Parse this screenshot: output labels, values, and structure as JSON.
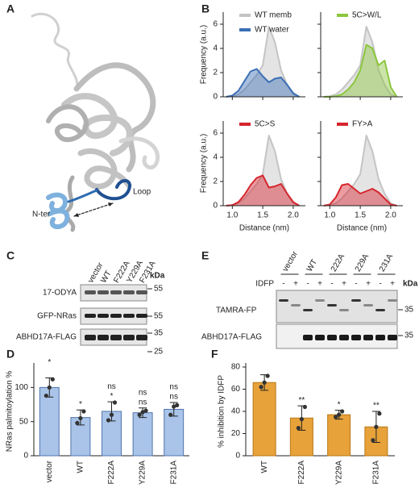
{
  "panels": [
    "A",
    "B",
    "C",
    "D",
    "E",
    "F"
  ],
  "structure": {
    "n_ter": "N-ter",
    "loop": "Loop"
  },
  "blot_c": {
    "lanes": [
      "vector",
      "WT",
      "F222A",
      "Y229A",
      "F231A"
    ],
    "unit": "kDa",
    "rows": [
      "17-ODYA",
      "GFP-NRas",
      "ABHD17A-FLAG"
    ],
    "markers": [
      55,
      55,
      35,
      25
    ]
  },
  "blot_e": {
    "lanes": [
      "vector",
      "WT",
      "222A",
      "229A",
      "231A"
    ],
    "treatment": "IDFP",
    "states": [
      "-",
      "+"
    ],
    "unit": "kDa",
    "rows": [
      "TAMRA-FP",
      "ABHD17A-FLAG"
    ],
    "markers": [
      35,
      35
    ]
  },
  "chart_data": [
    {
      "type": "density",
      "x": [
        0.9,
        1.0,
        1.1,
        1.2,
        1.3,
        1.4,
        1.5,
        1.6,
        1.7,
        1.8,
        1.9,
        2.0,
        2.1
      ],
      "xlim": [
        0.85,
        2.2
      ],
      "xticks": [
        {
          "value": 1,
          "label": "1.0"
        },
        1.5,
        {
          "value": 2,
          "label": "2.0"
        }
      ],
      "ylim": [
        0,
        7
      ],
      "yticks": [
        0,
        2,
        4,
        6
      ],
      "x_tick_labels": false,
      "y_tick_labels": true,
      "ylabel": "Frequency (a.u.)",
      "legend": "upper right",
      "series": [
        {
          "name": "WT memb",
          "color": "#c4c4c4",
          "values": [
            0,
            0.05,
            0.2,
            0.6,
            1.2,
            1.8,
            2.6,
            5.8,
            4.5,
            2.2,
            1.0,
            0.2,
            0
          ]
        },
        {
          "name": "WT water",
          "color": "#3b6fb6",
          "values": [
            0,
            0.1,
            0.5,
            1.3,
            2.1,
            2.3,
            1.7,
            1.2,
            1.5,
            1.6,
            1.0,
            0.3,
            0
          ]
        }
      ]
    },
    {
      "type": "density",
      "x": [
        0.9,
        1.0,
        1.1,
        1.2,
        1.3,
        1.4,
        1.5,
        1.6,
        1.7,
        1.8,
        1.9,
        2.0,
        2.1
      ],
      "xlim": [
        0.85,
        2.2
      ],
      "xticks": [
        {
          "value": 1,
          "label": "1.0"
        },
        1.5,
        {
          "value": 2,
          "label": "2.0"
        }
      ],
      "ylim": [
        0,
        7
      ],
      "yticks": [
        0,
        2,
        4,
        6
      ],
      "x_tick_labels": false,
      "y_tick_labels": false,
      "legend": "upper right",
      "series": [
        {
          "color": "#c4c4c4",
          "values": [
            0,
            0.05,
            0.2,
            0.6,
            1.2,
            1.8,
            2.6,
            5.8,
            4.5,
            2.2,
            1.0,
            0.2,
            0
          ]
        },
        {
          "name": "5C>W/L",
          "color": "#8cc63f",
          "values": [
            0,
            0,
            0.05,
            0.2,
            0.6,
            1.2,
            2.2,
            4.3,
            4.0,
            2.6,
            3.0,
            0.8,
            0
          ]
        }
      ]
    },
    {
      "type": "density",
      "x": [
        0.9,
        1.0,
        1.1,
        1.2,
        1.3,
        1.4,
        1.5,
        1.6,
        1.7,
        1.8,
        1.9,
        2.0,
        2.1
      ],
      "xlim": [
        0.85,
        2.2
      ],
      "xticks": [
        {
          "value": 1,
          "label": "1.0"
        },
        1.5,
        {
          "value": 2,
          "label": "2.0"
        }
      ],
      "ylim": [
        0,
        7
      ],
      "yticks": [
        0,
        2,
        4,
        6
      ],
      "x_tick_labels": true,
      "y_tick_labels": true,
      "ylabel": "Frequency (a.u.)",
      "xlabel": "Distance (nm)",
      "legend": "upper right",
      "series": [
        {
          "color": "#c4c4c4",
          "values": [
            0,
            0.05,
            0.2,
            0.6,
            1.2,
            1.8,
            2.6,
            5.8,
            4.5,
            2.2,
            1.0,
            0.2,
            0
          ]
        },
        {
          "name": "5C>S",
          "color": "#d6262e",
          "values": [
            0,
            0.05,
            0.3,
            0.9,
            1.7,
            2.3,
            2.5,
            1.5,
            1.6,
            1.8,
            1.0,
            0.3,
            0
          ]
        }
      ]
    },
    {
      "type": "density",
      "x": [
        0.9,
        1.0,
        1.1,
        1.2,
        1.3,
        1.4,
        1.5,
        1.6,
        1.7,
        1.8,
        1.9,
        2.0,
        2.1
      ],
      "xlim": [
        0.85,
        2.2
      ],
      "xticks": [
        {
          "value": 1,
          "label": "1.0"
        },
        1.5,
        {
          "value": 2,
          "label": "2.0"
        }
      ],
      "ylim": [
        0,
        7
      ],
      "yticks": [
        0,
        2,
        4,
        6
      ],
      "x_tick_labels": true,
      "y_tick_labels": false,
      "xlabel": "Distance (nm)",
      "legend": "upper right",
      "series": [
        {
          "color": "#c4c4c4",
          "values": [
            0,
            0.05,
            0.2,
            0.6,
            1.2,
            1.8,
            2.6,
            5.8,
            4.5,
            2.2,
            1.0,
            0.2,
            0
          ]
        },
        {
          "name": "FY>A",
          "color": "#d6262e",
          "values": [
            0,
            0.1,
            0.7,
            1.7,
            1.8,
            1.4,
            1.0,
            1.2,
            1.4,
            1.1,
            0.6,
            0.1,
            0
          ]
        }
      ]
    },
    {
      "type": "bar",
      "categories": [
        "vector",
        "WT",
        "F222A",
        "Y229A",
        "F231A"
      ],
      "values": [
        100,
        56,
        65,
        63,
        68
      ],
      "errors": [
        14,
        11,
        14,
        7,
        10
      ],
      "points": [
        [
          88,
          100,
          112
        ],
        [
          48,
          55,
          65
        ],
        [
          52,
          60,
          78
        ],
        [
          60,
          64,
          66
        ],
        [
          60,
          72,
          74
        ]
      ],
      "annotations_top": [
        "*",
        null,
        "ns",
        "ns",
        "ns"
      ],
      "annotation_top_color": "#4a90d9",
      "annotations": [
        null,
        "*",
        "*",
        "ns",
        "ns"
      ],
      "annotation_color": "#222222",
      "color": "#a9c4e8",
      "edge_color": "#4f74ad",
      "ylabel": "NRas palmitoylation %",
      "ylim": [
        0,
        130
      ],
      "yticks": [
        0,
        50,
        100
      ]
    },
    {
      "type": "bar",
      "categories": [
        "WT",
        "F222A",
        "Y229A",
        "F231A"
      ],
      "values": [
        66,
        34,
        37,
        26
      ],
      "errors": [
        7,
        11,
        4,
        14
      ],
      "points": [
        [
          62,
          66,
          72
        ],
        [
          25,
          33,
          44
        ],
        [
          35,
          37,
          40
        ],
        [
          14,
          26,
          38
        ]
      ],
      "annotations": [
        null,
        "**",
        "*",
        "**"
      ],
      "annotation_color": "#222222",
      "color": "#e8a23a",
      "edge_color": "#b77716",
      "ylabel": "% inhibition by IDFP",
      "ylim": [
        0,
        80
      ],
      "yticks": [
        0,
        20,
        40,
        60,
        80
      ]
    }
  ]
}
